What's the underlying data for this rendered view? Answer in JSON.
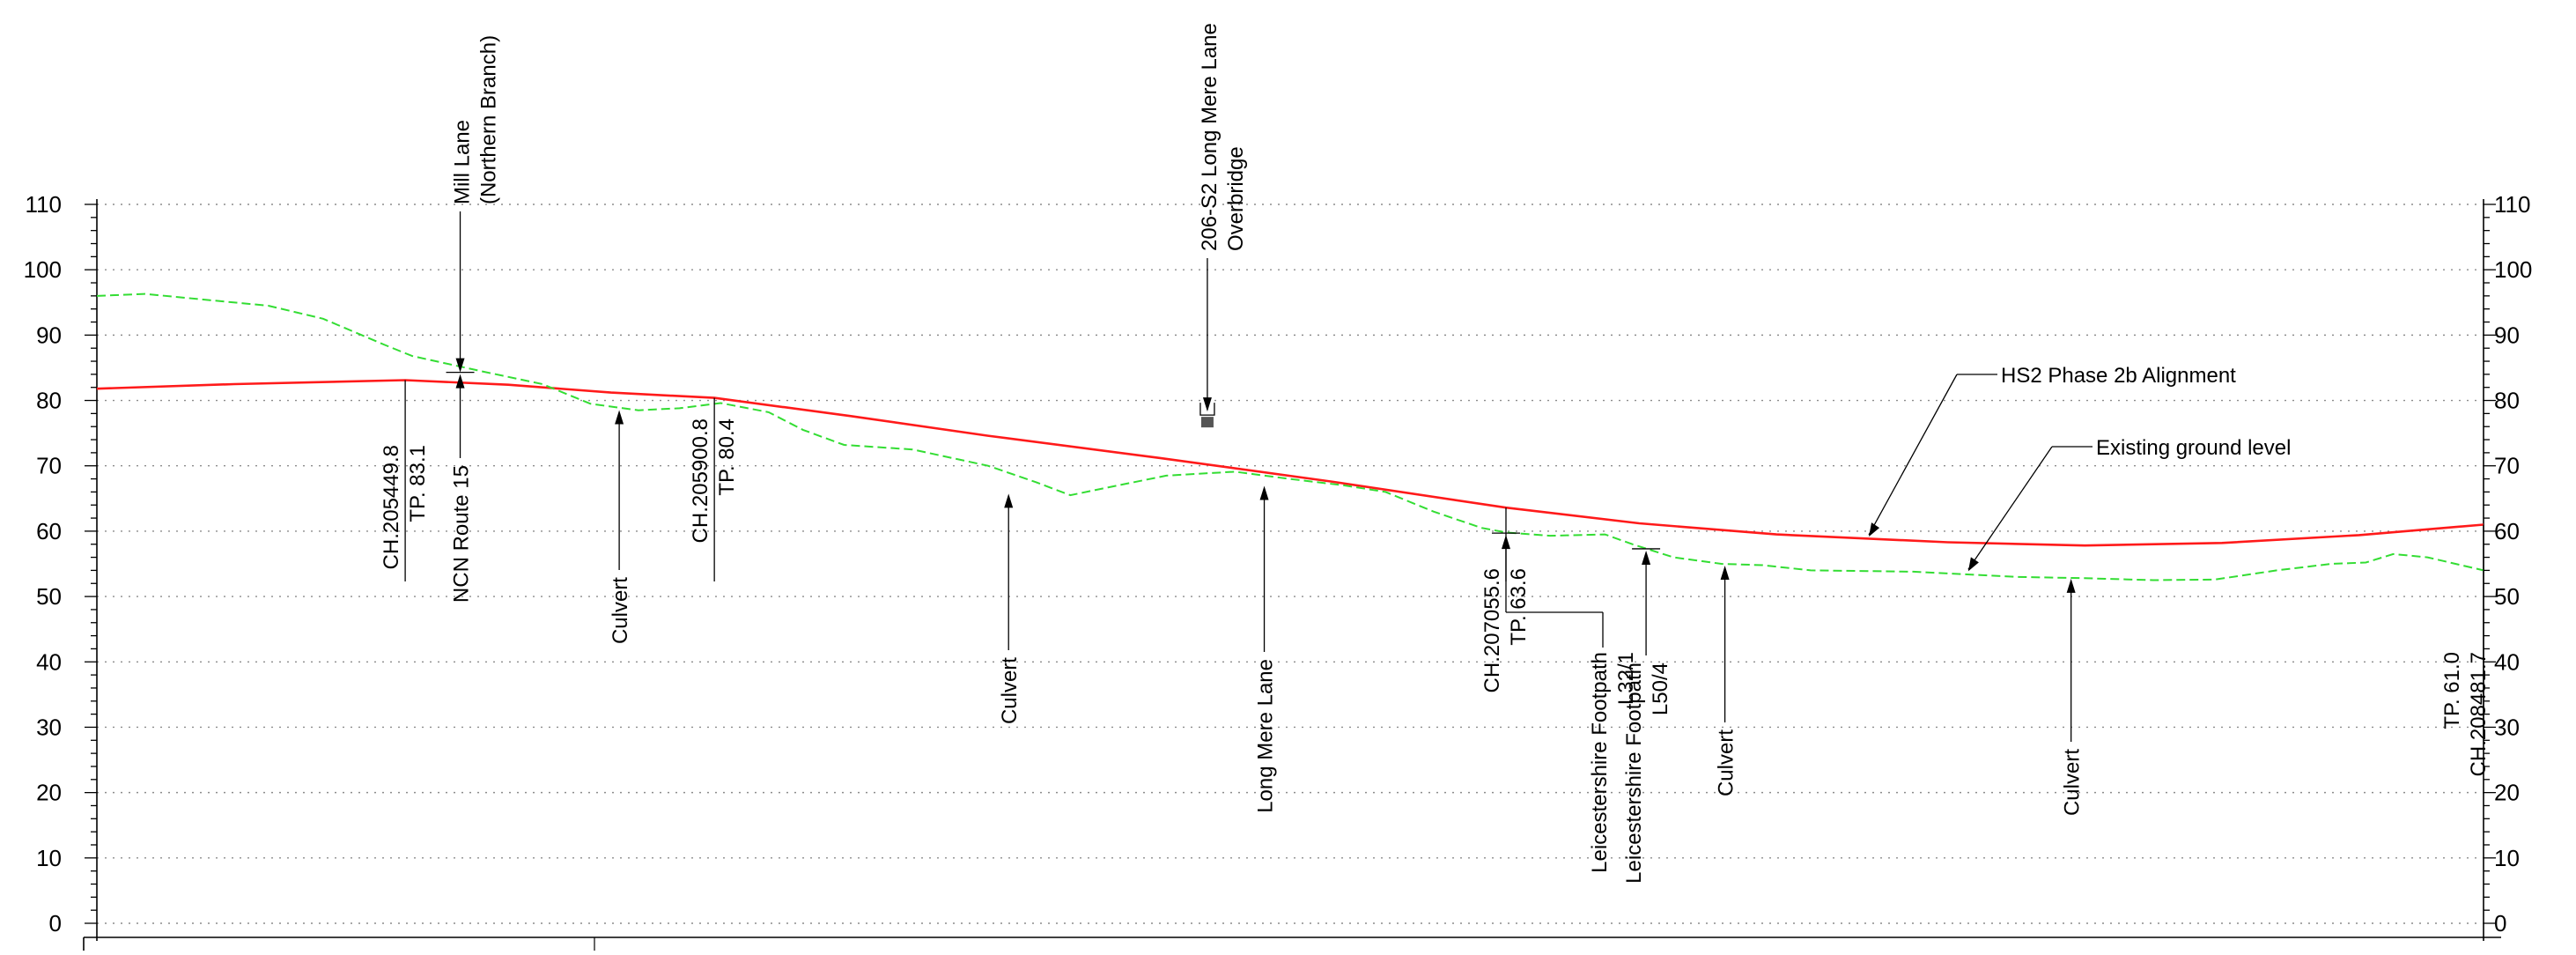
{
  "chart_data": {
    "type": "line",
    "title": "",
    "xlabel": "",
    "ylabel": "",
    "ylim": [
      0,
      110
    ],
    "xlim": [
      205000,
      208481.7
    ],
    "y_ticks": [
      "0",
      "10",
      "20",
      "30",
      "40",
      "50",
      "60",
      "70",
      "80",
      "90",
      "100",
      "110"
    ],
    "grid": true,
    "series": [
      {
        "name": "HS2 Phase 2b Alignment",
        "color": "#ff1a1a",
        "style": "solid",
        "points": [
          [
            205000,
            81.8
          ],
          [
            205200,
            82.5
          ],
          [
            205449.8,
            83.1
          ],
          [
            205600,
            82.4
          ],
          [
            205750,
            81.2
          ],
          [
            205900.8,
            80.4
          ],
          [
            206100,
            77.6
          ],
          [
            206300,
            74.6
          ],
          [
            206550,
            71.2
          ],
          [
            206800,
            67.6
          ],
          [
            207055.6,
            63.6
          ],
          [
            207250,
            61.2
          ],
          [
            207450,
            59.5
          ],
          [
            207700,
            58.3
          ],
          [
            207900,
            57.8
          ],
          [
            208100,
            58.2
          ],
          [
            208300,
            59.4
          ],
          [
            208481.7,
            61.0
          ]
        ]
      },
      {
        "name": "Existing ground level",
        "color": "#33dd33",
        "style": "dashed",
        "points": [
          [
            205000,
            96.0
          ],
          [
            205070,
            96.3
          ],
          [
            205150,
            95.5
          ],
          [
            205250,
            94.5
          ],
          [
            205330,
            92.5
          ],
          [
            205420,
            88.5
          ],
          [
            205460,
            86.8
          ],
          [
            205560,
            84.5
          ],
          [
            205650,
            82.5
          ],
          [
            205720,
            79.5
          ],
          [
            205790,
            78.5
          ],
          [
            205850,
            78.8
          ],
          [
            205910,
            79.6
          ],
          [
            205980,
            78.2
          ],
          [
            206030,
            75.5
          ],
          [
            206090,
            73.2
          ],
          [
            206190,
            72.5
          ],
          [
            206300,
            70.0
          ],
          [
            206370,
            67.5
          ],
          [
            206420,
            65.5
          ],
          [
            206480,
            66.8
          ],
          [
            206560,
            68.5
          ],
          [
            206660,
            69.1
          ],
          [
            206740,
            68.0
          ],
          [
            206820,
            67.0
          ],
          [
            206880,
            66.0
          ],
          [
            206950,
            63.0
          ],
          [
            207020,
            60.5
          ],
          [
            207055.6,
            59.8
          ],
          [
            207120,
            59.3
          ],
          [
            207200,
            59.5
          ],
          [
            207240,
            58.0
          ],
          [
            207300,
            56.0
          ],
          [
            207370,
            55.0
          ],
          [
            207430,
            54.8
          ],
          [
            207500,
            54.0
          ],
          [
            207650,
            53.8
          ],
          [
            207800,
            53.0
          ],
          [
            207900,
            52.8
          ],
          [
            208000,
            52.5
          ],
          [
            208090,
            52.6
          ],
          [
            208180,
            54.0
          ],
          [
            208260,
            55.0
          ],
          [
            208310,
            55.2
          ],
          [
            208350,
            56.5
          ],
          [
            208400,
            56.0
          ],
          [
            208481.7,
            54.0
          ]
        ]
      }
    ],
    "annotations": {
      "top": [
        {
          "lines": [
            "Mill Lane",
            "(Northern Branch)"
          ],
          "chainage": 205530,
          "target_level": 84.3
        },
        {
          "lines": [
            "206-S2 Long Mere Lane",
            "Overbridge"
          ],
          "chainage": 206620,
          "target_level": 78.3
        }
      ],
      "bottom": [
        {
          "lines": [
            "CH.205449.8",
            "TP. 83.1"
          ],
          "chainage": 205449.8,
          "level": 83.1,
          "type": "leader"
        },
        {
          "lines": [
            "NCN Route 15"
          ],
          "chainage": 205530,
          "level": 84.3,
          "type": "arrow"
        },
        {
          "lines": [
            "Culvert"
          ],
          "chainage": 205762,
          "level": 78.8,
          "type": "arrow"
        },
        {
          "lines": [
            "CH.205900.8",
            "TP. 80.4"
          ],
          "chainage": 205900.8,
          "level": 80.4,
          "type": "leader"
        },
        {
          "lines": [
            "Culvert"
          ],
          "chainage": 206330,
          "level": 66.0,
          "type": "arrow"
        },
        {
          "lines": [
            "Long Mere Lane"
          ],
          "chainage": 206703,
          "level": 67.2,
          "type": "arrow"
        },
        {
          "lines": [
            "CH.207055.6",
            "TP. 63.6"
          ],
          "chainage": 207055.6,
          "level": 63.6,
          "type": "leader"
        },
        {
          "lines": [
            "Leicestershire Footpath",
            "L32/1"
          ],
          "chainage": 207055.6,
          "level": 59.7,
          "type": "arrow-offset"
        },
        {
          "lines": [
            "Leicestershire Footpath",
            "L50/4"
          ],
          "chainage": 207260,
          "level": 57.3,
          "type": "arrow"
        },
        {
          "lines": [
            "Culvert"
          ],
          "chainage": 207375,
          "level": 55.0,
          "type": "arrow"
        },
        {
          "lines": [
            "Culvert"
          ],
          "chainage": 207880,
          "level": 53.0,
          "type": "arrow"
        },
        {
          "lines": [
            "TP. 61.0",
            "CH.208481.7"
          ],
          "chainage": 208481.7,
          "level": 61.0,
          "type": "leader-end"
        }
      ],
      "callouts": [
        {
          "label": "HS2 Phase 2b Alignment",
          "target_chainage": 207585,
          "target_level": 58.9
        },
        {
          "label": "Existing ground level",
          "target_chainage": 207730,
          "target_level": 53.6
        }
      ]
    }
  }
}
